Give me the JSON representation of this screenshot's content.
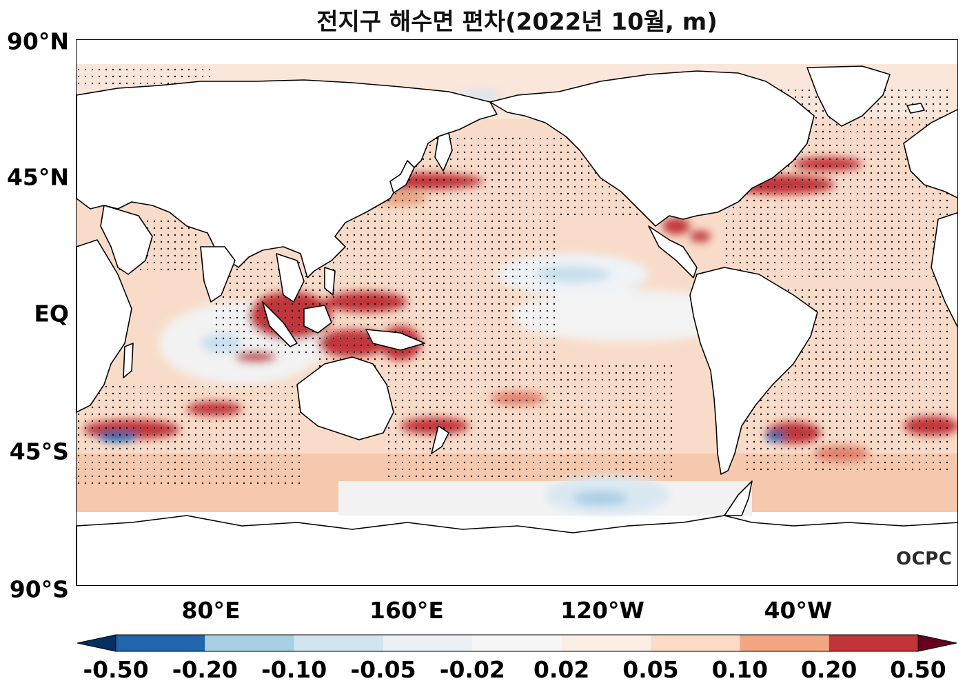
{
  "title": "전지구 해수면 편차(2022년 10월, m)",
  "latitude_labels": [
    "90°N",
    "45°N",
    "EQ",
    "45°S",
    "90°S"
  ],
  "longitude_labels": [
    "80°E",
    "160°E",
    "120°W",
    "40°W"
  ],
  "colorbar": {
    "tick_labels": [
      "-0.50",
      "-0.20",
      "-0.10",
      "-0.05",
      "-0.02",
      "0.02",
      "0.05",
      "0.10",
      "0.20",
      "0.50"
    ],
    "colors": [
      "#053061",
      "#2166ac",
      "#a7d0e4",
      "#d1e5f0",
      "#e9f1f6",
      "#f7f7f7",
      "#fbeee5",
      "#fddbc7",
      "#f4a582",
      "#c1343a",
      "#67001f"
    ],
    "extend": "both"
  },
  "logo_text": "OCPC",
  "map": {
    "projection": "Plate Carrée, centered at 180°",
    "lon_range": [
      20,
      380
    ],
    "lat_range": [
      -90,
      90
    ],
    "variable": "sea level anomaly",
    "units": "m",
    "stippling": "statistically significant regions"
  }
}
